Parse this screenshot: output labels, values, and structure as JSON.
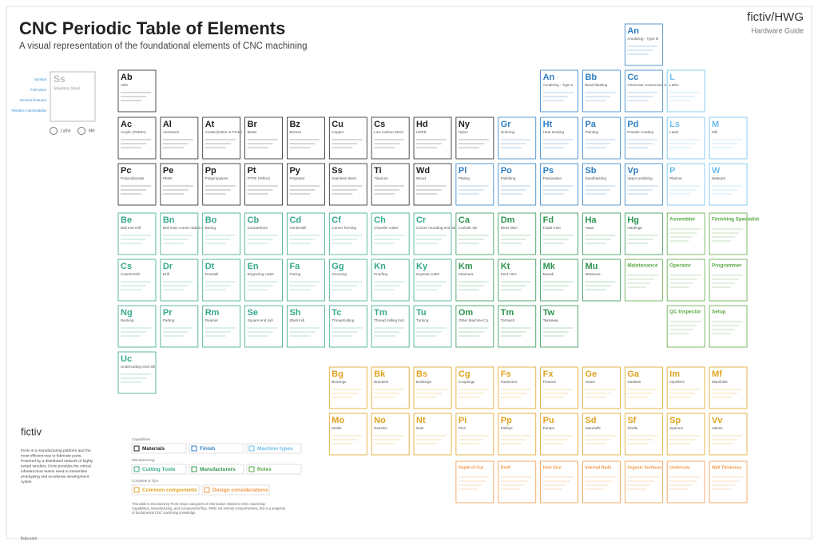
{
  "header": {
    "title": "CNC Periodic Table of Elements",
    "subtitle": "A visual representation of the foundational elements of CNC machining",
    "brand": "fictiv/HWG",
    "brand_sub": "Hardware Guide"
  },
  "key": {
    "symbol": "Ss",
    "name": "Stainless Steel",
    "labels": [
      "Symbol",
      "Full name",
      "General features",
      "Relative machinability"
    ],
    "lathe": "Lathe",
    "mill": "Mill"
  },
  "sections": {
    "materials": [
      {
        "symbol": "Ab",
        "name": "ABS"
      },
      {
        "symbol": "Ac",
        "name": "Acrylic (PMMA)"
      },
      {
        "symbol": "Al",
        "name": "Aluminum"
      },
      {
        "symbol": "At",
        "name": "Acetal (Delrin or POM)"
      },
      {
        "symbol": "Br",
        "name": "Brass"
      },
      {
        "symbol": "Bz",
        "name": "Bronze"
      },
      {
        "symbol": "Cu",
        "name": "Copper"
      },
      {
        "symbol": "Cs",
        "name": "Low Carbon Steel"
      },
      {
        "symbol": "Hd",
        "name": "HDPE"
      },
      {
        "symbol": "Ny",
        "name": "Nylon"
      },
      {
        "symbol": "Pc",
        "name": "Polycarbonate"
      },
      {
        "symbol": "Pe",
        "name": "PEEK"
      },
      {
        "symbol": "Pp",
        "name": "Polypropylene"
      },
      {
        "symbol": "Pt",
        "name": "PTFE (Teflon)"
      },
      {
        "symbol": "Py",
        "name": "Polyester"
      },
      {
        "symbol": "Ss",
        "name": "Stainless Steel"
      },
      {
        "symbol": "Ti",
        "name": "Titanium"
      },
      {
        "symbol": "Wd",
        "name": "Wood"
      }
    ],
    "finishes": [
      {
        "symbol": "An",
        "name": "Anodizing - Type III"
      },
      {
        "symbol": "An",
        "name": "Anodizing - Type II"
      },
      {
        "symbol": "Bb",
        "name": "Bead blasting"
      },
      {
        "symbol": "Cc",
        "name": "Chromate Conversion Coating"
      },
      {
        "symbol": "Gr",
        "name": "Graining"
      },
      {
        "symbol": "Ht",
        "name": "Heat treating"
      },
      {
        "symbol": "Pa",
        "name": "Painting"
      },
      {
        "symbol": "Pd",
        "name": "Powder Coating"
      },
      {
        "symbol": "Pl",
        "name": "Plating"
      },
      {
        "symbol": "Po",
        "name": "Polishing"
      },
      {
        "symbol": "Ps",
        "name": "Passivation"
      },
      {
        "symbol": "Sb",
        "name": "Sandblasting"
      },
      {
        "symbol": "Vp",
        "name": "Vapor polishing"
      }
    ],
    "machines": [
      {
        "symbol": "L",
        "name": "Lathe"
      },
      {
        "symbol": "Ls",
        "name": "Laser"
      },
      {
        "symbol": "M",
        "name": "Mill"
      },
      {
        "symbol": "P",
        "name": "Plasma"
      },
      {
        "symbol": "W",
        "name": "Waterjet"
      }
    ],
    "tools": [
      {
        "symbol": "Be",
        "name": "Ball end mill"
      },
      {
        "symbol": "Bn",
        "name": "Bull nose corner radius end mill"
      },
      {
        "symbol": "Bo",
        "name": "Boring"
      },
      {
        "symbol": "Cb",
        "name": "Counterbore"
      },
      {
        "symbol": "Cd",
        "name": "Centerdrill"
      },
      {
        "symbol": "Cf",
        "name": "Corner forming"
      },
      {
        "symbol": "Ch",
        "name": "Chamfer cutter"
      },
      {
        "symbol": "Cr",
        "name": "Corner rounding end mill"
      },
      {
        "symbol": "Cs",
        "name": "Countersink"
      },
      {
        "symbol": "Dr",
        "name": "Drill"
      },
      {
        "symbol": "Dt",
        "name": "Dovetail"
      },
      {
        "symbol": "En",
        "name": "Engraving cutter"
      },
      {
        "symbol": "Fa",
        "name": "Facing"
      },
      {
        "symbol": "Gg",
        "name": "Grooving"
      },
      {
        "symbol": "Kn",
        "name": "Knurling"
      },
      {
        "symbol": "Ky",
        "name": "Keyseat cutter"
      },
      {
        "symbol": "Ng",
        "name": "Necking"
      },
      {
        "symbol": "Pr",
        "name": "Parting"
      },
      {
        "symbol": "Rm",
        "name": "Reamer"
      },
      {
        "symbol": "Se",
        "name": "Square end mill"
      },
      {
        "symbol": "Sh",
        "name": "Shell mill"
      },
      {
        "symbol": "Tc",
        "name": "Threadcutting"
      },
      {
        "symbol": "Tm",
        "name": "Thread milling tool"
      },
      {
        "symbol": "Tu",
        "name": "Turning"
      },
      {
        "symbol": "Uc",
        "name": "Undercutting end mill"
      }
    ],
    "manufacturers": [
      {
        "symbol": "Ca",
        "name": "Carbide 3D"
      },
      {
        "symbol": "Dm",
        "name": "DMG Mori"
      },
      {
        "symbol": "Fd",
        "name": "Fadal CNC"
      },
      {
        "symbol": "Ha",
        "name": "Haas"
      },
      {
        "symbol": "Hg",
        "name": "Hardinge"
      },
      {
        "symbol": "Km",
        "name": "Kitamura"
      },
      {
        "symbol": "Kt",
        "name": "Kent USA"
      },
      {
        "symbol": "Mk",
        "name": "Mazak"
      },
      {
        "symbol": "Mu",
        "name": "Matsuura"
      },
      {
        "symbol": "Om",
        "name": "Other Machine Co."
      },
      {
        "symbol": "Tm",
        "name": "Tormach"
      },
      {
        "symbol": "Tw",
        "name": "Takisawa"
      }
    ],
    "roles": [
      {
        "name": "Assembler"
      },
      {
        "name": "Finishing Specialist"
      },
      {
        "name": "Maintenance"
      },
      {
        "name": "Operator"
      },
      {
        "name": "Programmer"
      },
      {
        "name": "QC Inspector"
      },
      {
        "name": "Setup"
      }
    ],
    "components": [
      {
        "symbol": "Bg",
        "name": "Bearings"
      },
      {
        "symbol": "Bk",
        "name": "Brackets"
      },
      {
        "symbol": "Bs",
        "name": "Bushings"
      },
      {
        "symbol": "Cg",
        "name": "Couplings"
      },
      {
        "symbol": "Fs",
        "name": "Fasteners"
      },
      {
        "symbol": "Fx",
        "name": "Fixtures"
      },
      {
        "symbol": "Ge",
        "name": "Gears"
      },
      {
        "symbol": "Ga",
        "name": "Gaskets"
      },
      {
        "symbol": "Im",
        "name": "Impellers"
      },
      {
        "symbol": "Mf",
        "name": "Manifolds"
      },
      {
        "symbol": "Mo",
        "name": "Molds"
      },
      {
        "symbol": "No",
        "name": "Nozzles"
      },
      {
        "symbol": "Nt",
        "name": "Nuts"
      },
      {
        "symbol": "Pi",
        "name": "Pins"
      },
      {
        "symbol": "Pp",
        "name": "Pulleys"
      },
      {
        "symbol": "Pu",
        "name": "Pumps"
      },
      {
        "symbol": "Sd",
        "name": "Standoffs"
      },
      {
        "symbol": "Sf",
        "name": "Shafts"
      },
      {
        "symbol": "Sp",
        "name": "Spacers"
      },
      {
        "symbol": "Vv",
        "name": "Valves"
      }
    ],
    "design": [
      {
        "name": "Depth of Cut"
      },
      {
        "name": "Draft"
      },
      {
        "name": "Hole Size"
      },
      {
        "name": "Internal Radii"
      },
      {
        "name": "Organic Surfaces"
      },
      {
        "name": "Undercuts"
      },
      {
        "name": "Wall Thickness"
      }
    ]
  },
  "legend": {
    "groups": [
      {
        "title": "Capabilities",
        "items": [
          "Materials",
          "Finish",
          "Machine types"
        ]
      },
      {
        "title": "Manufacturing",
        "items": [
          "Cutting Tools",
          "Manufacturers",
          "Roles"
        ]
      },
      {
        "title": "Complete & Tips",
        "items": [
          "Common components",
          "Design considerations"
        ]
      }
    ],
    "note": "This table is structured by Fictiv major categories of information related to CNC machining: Capabilities, Manufacturing, and Components/Tips. While not entirely comprehensive, this is a snapshot of fundamental CNC machining knowledge."
  },
  "about": {
    "logo": "fictiv",
    "text": "Fictiv is a manufacturing platform and the most efficient way to fabricate parts. Powered by a distributed network of highly vetted vendors, Fictiv provides the critical infrastructure teams need to streamline prototyping and accelerate development cycles.",
    "url": "fictiv.com"
  }
}
